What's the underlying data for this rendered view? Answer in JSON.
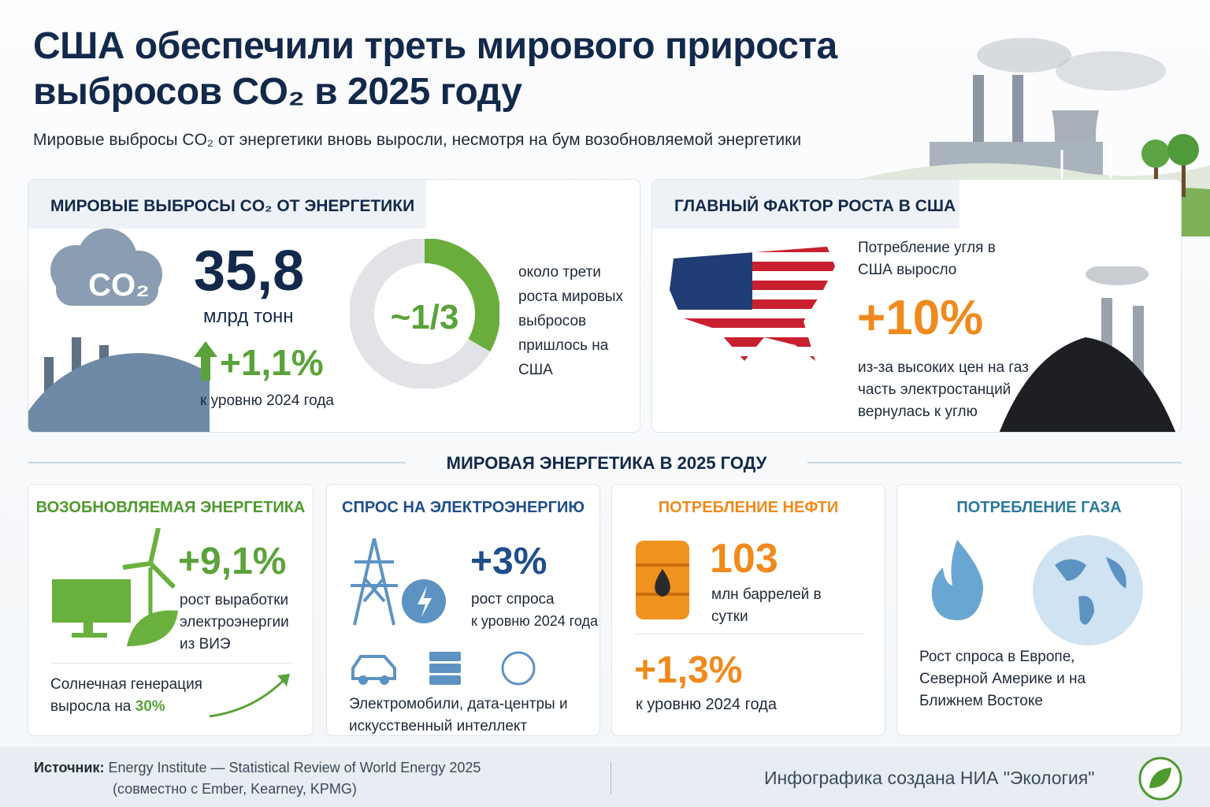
{
  "header": {
    "title": "США обеспечили треть мирового прироста выбросов CO₂ в 2025 году",
    "subtitle": "Мировые выбросы CO₂ от энергетики вновь выросли, несмотря на бум возобновляемой энергетики"
  },
  "emissions": {
    "heading": "МИРОВЫЕ ВЫБРОСЫ CO₂ ОТ ЭНЕРГЕТИКИ",
    "icon_label": "CO₂",
    "value": "35,8",
    "unit": "млрд тонн",
    "change": "+1,1%",
    "change_note": "к уровню 2024 года",
    "share": "~1/3",
    "share_note": "около трети роста мировых выбросов пришлось на США"
  },
  "usa": {
    "heading": "ГЛАВНЫЙ ФАКТОР РОСТА В США",
    "text": "Потребление угля в США выросло",
    "value": "+10%",
    "note": "из-за высоких цен на газ часть электростанций вернулась к углю"
  },
  "section_title": "МИРОВАЯ ЭНЕРГЕТИКА В 2025 ГОДУ",
  "renewables": {
    "heading": "ВОЗОБНОВЛЯЕМАЯ ЭНЕРГЕТИКА",
    "value": "+9,1%",
    "note": "рост выработки электроэнергии из ВИЭ",
    "solar_text": "Солнечная генерация выросла на",
    "solar_value": "30%"
  },
  "electricity": {
    "heading": "СПРОС НА ЭЛЕКТРОЭНЕРГИЮ",
    "value": "+3%",
    "note": "рост спроса",
    "note2": "к уровню 2024 года",
    "drivers": "Электромобили, дата-центры и искусственный интеллект"
  },
  "oil": {
    "heading": "ПОТРЕБЛЕНИЕ НЕФТИ",
    "value": "103",
    "unit": "млн баррелей в сутки",
    "change": "+1,3%",
    "change_note": "к уровню 2024 года"
  },
  "gas": {
    "heading": "ПОТРЕБЛЕНИЕ ГАЗА",
    "text": "Рост спроса в Европе, Северной Америке и на Ближнем Востоке"
  },
  "footer": {
    "source_label": "Источник:",
    "source": "Energy Institute — Statistical Review of World Energy 2025",
    "source_note": "(совместно с Ember, Kearney, KPMG)",
    "credit": "Инфографика создана НИА \"Экология\""
  }
}
